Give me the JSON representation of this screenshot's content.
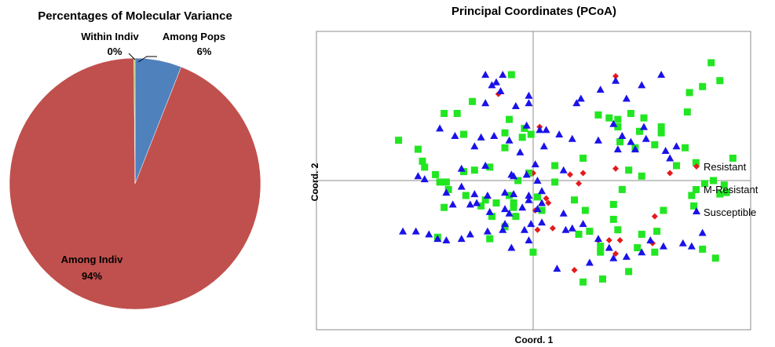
{
  "chart_data": [
    {
      "type": "pie",
      "title": "Percentages of Molecular Variance",
      "slices": [
        {
          "label": "Among Pops",
          "percent_label": "6%",
          "value": 6,
          "color": "#4F81BD"
        },
        {
          "label": "Among Indiv",
          "percent_label": "94%",
          "value": 94,
          "color": "#C0504D"
        },
        {
          "label": "Within Indiv",
          "percent_label": "0%",
          "value": 0.15,
          "color": "#9BBB59"
        }
      ]
    },
    {
      "type": "scatter",
      "title": "Principal Coordinates (PCoA)",
      "xlabel": "Coord. 1",
      "ylabel": "Coord. 2",
      "xlim": [
        -1,
        1
      ],
      "ylim": [
        -1,
        1
      ],
      "grid": false,
      "legend": "right",
      "series": [
        {
          "name": "Resistant",
          "marker": "diamond",
          "color": "#E31A1C",
          "points": [
            [
              -0.16,
              0.58
            ],
            [
              0.03,
              0.36
            ],
            [
              0.0,
              0.05
            ],
            [
              0.17,
              0.04
            ],
            [
              0.23,
              0.05
            ],
            [
              0.21,
              -0.02
            ],
            [
              0.63,
              0.05
            ],
            [
              0.38,
              0.7
            ],
            [
              0.38,
              0.08
            ],
            [
              0.01,
              -0.2
            ],
            [
              0.07,
              -0.15
            ],
            [
              0.09,
              -0.32
            ],
            [
              0.02,
              -0.33
            ],
            [
              0.56,
              -0.24
            ],
            [
              0.3,
              -0.4
            ],
            [
              0.35,
              -0.4
            ],
            [
              0.4,
              -0.4
            ],
            [
              0.38,
              -0.49
            ],
            [
              0.55,
              -0.42
            ],
            [
              0.19,
              -0.6
            ],
            [
              0.06,
              -0.12
            ]
          ]
        },
        {
          "name": "M-Resistant",
          "marker": "square",
          "color": "#22E622",
          "points": [
            [
              -0.1,
              0.71
            ],
            [
              -0.62,
              0.27
            ],
            [
              -0.53,
              0.21
            ],
            [
              -0.41,
              0.45
            ],
            [
              -0.35,
              0.45
            ],
            [
              -0.28,
              0.53
            ],
            [
              -0.11,
              0.41
            ],
            [
              -0.32,
              0.31
            ],
            [
              -0.13,
              0.32
            ],
            [
              -0.04,
              0.35
            ],
            [
              -0.05,
              0.29
            ],
            [
              -0.13,
              0.22
            ],
            [
              -0.01,
              0.31
            ],
            [
              -0.51,
              0.13
            ],
            [
              -0.5,
              0.09
            ],
            [
              -0.32,
              0.06
            ],
            [
              -0.27,
              0.07
            ],
            [
              -0.2,
              0.09
            ],
            [
              -0.45,
              0.04
            ],
            [
              -0.39,
              -0.06
            ],
            [
              -0.43,
              -0.01
            ],
            [
              -0.4,
              -0.01
            ],
            [
              -0.31,
              -0.1
            ],
            [
              -0.22,
              -0.13
            ],
            [
              -0.11,
              -0.1
            ],
            [
              -0.17,
              -0.15
            ],
            [
              -0.24,
              -0.17
            ],
            [
              -0.19,
              -0.24
            ],
            [
              -0.09,
              -0.18
            ],
            [
              -0.02,
              0.05
            ],
            [
              -0.07,
              0.0
            ],
            [
              -0.08,
              -0.24
            ],
            [
              -0.2,
              -0.39
            ],
            [
              -0.44,
              -0.38
            ],
            [
              -0.41,
              -0.18
            ],
            [
              0.0,
              -0.48
            ],
            [
              0.02,
              -0.11
            ],
            [
              -0.13,
              -0.31
            ],
            [
              0.04,
              -0.2
            ],
            [
              0.1,
              0.1
            ],
            [
              0.23,
              0.15
            ],
            [
              0.3,
              0.44
            ],
            [
              0.35,
              0.42
            ],
            [
              0.39,
              0.41
            ],
            [
              0.4,
              0.26
            ],
            [
              0.49,
              0.33
            ],
            [
              0.56,
              0.24
            ],
            [
              0.47,
              0.22
            ],
            [
              0.51,
              0.42
            ],
            [
              0.7,
              0.22
            ],
            [
              0.72,
              0.59
            ],
            [
              0.82,
              0.79
            ],
            [
              0.86,
              0.67
            ],
            [
              0.71,
              0.46
            ],
            [
              0.39,
              0.36
            ],
            [
              0.1,
              -0.01
            ],
            [
              0.19,
              -0.13
            ],
            [
              0.24,
              -0.2
            ],
            [
              0.37,
              -0.26
            ],
            [
              0.44,
              0.07
            ],
            [
              0.5,
              0.03
            ],
            [
              0.6,
              -0.2
            ],
            [
              0.26,
              -0.34
            ],
            [
              0.31,
              -0.44
            ],
            [
              0.39,
              -0.33
            ],
            [
              0.21,
              -0.36
            ],
            [
              0.48,
              -0.45
            ],
            [
              0.5,
              -0.36
            ],
            [
              0.44,
              -0.61
            ],
            [
              0.56,
              -0.48
            ],
            [
              0.59,
              0.32
            ],
            [
              0.66,
              0.1
            ],
            [
              0.75,
              0.12
            ],
            [
              0.73,
              -0.1
            ],
            [
              0.74,
              -0.17
            ],
            [
              0.79,
              -0.02
            ],
            [
              0.83,
              0.0
            ],
            [
              0.88,
              -0.03
            ],
            [
              0.86,
              -0.09
            ],
            [
              0.89,
              -0.08
            ],
            [
              0.78,
              0.63
            ],
            [
              0.92,
              0.15
            ],
            [
              0.23,
              -0.68
            ],
            [
              0.31,
              -0.48
            ],
            [
              0.32,
              -0.66
            ],
            [
              0.37,
              -0.16
            ],
            [
              0.41,
              -0.06
            ],
            [
              0.45,
              0.45
            ],
            [
              0.57,
              -0.34
            ],
            [
              -0.09,
              -0.15
            ],
            [
              0.84,
              -0.52
            ],
            [
              0.78,
              -0.46
            ],
            [
              0.59,
              0.36
            ]
          ]
        },
        {
          "name": "Susceptible",
          "marker": "triangle",
          "color": "#1A12E8",
          "points": [
            [
              -0.22,
              0.71
            ],
            [
              -0.19,
              0.64
            ],
            [
              -0.17,
              0.66
            ],
            [
              -0.14,
              0.71
            ],
            [
              -0.15,
              0.6
            ],
            [
              -0.22,
              0.52
            ],
            [
              -0.08,
              0.5
            ],
            [
              -0.02,
              0.57
            ],
            [
              -0.02,
              0.52
            ],
            [
              0.2,
              0.52
            ],
            [
              0.31,
              0.61
            ],
            [
              0.38,
              0.67
            ],
            [
              0.43,
              0.55
            ],
            [
              0.59,
              0.71
            ],
            [
              0.5,
              0.64
            ],
            [
              -0.43,
              0.35
            ],
            [
              -0.36,
              0.3
            ],
            [
              -0.24,
              0.29
            ],
            [
              -0.18,
              0.3
            ],
            [
              -0.11,
              0.27
            ],
            [
              -0.03,
              0.37
            ],
            [
              0.03,
              0.34
            ],
            [
              0.06,
              0.34
            ],
            [
              0.05,
              0.23
            ],
            [
              0.14,
              0.07
            ],
            [
              0.18,
              0.28
            ],
            [
              0.3,
              0.27
            ],
            [
              0.45,
              0.26
            ],
            [
              0.47,
              0.21
            ],
            [
              0.52,
              0.28
            ],
            [
              0.51,
              0.36
            ],
            [
              0.41,
              0.3
            ],
            [
              0.39,
              0.21
            ],
            [
              0.37,
              0.38
            ],
            [
              -0.27,
              0.23
            ],
            [
              -0.53,
              0.03
            ],
            [
              -0.5,
              0.01
            ],
            [
              -0.33,
              0.08
            ],
            [
              -0.22,
              0.1
            ],
            [
              -0.1,
              0.04
            ],
            [
              -0.09,
              0.03
            ],
            [
              -0.03,
              0.04
            ],
            [
              0.01,
              0.11
            ],
            [
              0.02,
              0.0
            ],
            [
              0.04,
              -0.07
            ],
            [
              -0.02,
              -0.1
            ],
            [
              -0.02,
              -0.13
            ],
            [
              0.04,
              -0.15
            ],
            [
              -0.09,
              -0.09
            ],
            [
              -0.13,
              -0.08
            ],
            [
              -0.21,
              -0.1
            ],
            [
              -0.27,
              -0.09
            ],
            [
              -0.33,
              -0.04
            ],
            [
              -0.4,
              -0.08
            ],
            [
              -0.37,
              -0.16
            ],
            [
              -0.29,
              -0.16
            ],
            [
              -0.26,
              -0.15
            ],
            [
              -0.2,
              -0.21
            ],
            [
              -0.13,
              -0.19
            ],
            [
              -0.05,
              -0.18
            ],
            [
              -0.11,
              -0.22
            ],
            [
              -0.01,
              -0.29
            ],
            [
              -0.14,
              -0.33
            ],
            [
              -0.21,
              -0.34
            ],
            [
              -0.29,
              -0.36
            ],
            [
              -0.33,
              -0.39
            ],
            [
              -0.4,
              -0.4
            ],
            [
              -0.44,
              -0.39
            ],
            [
              -0.48,
              -0.36
            ],
            [
              -0.54,
              -0.34
            ],
            [
              -0.6,
              -0.34
            ],
            [
              -0.1,
              -0.45
            ],
            [
              -0.04,
              -0.33
            ],
            [
              -0.02,
              -0.4
            ],
            [
              0.14,
              -0.22
            ],
            [
              0.15,
              -0.33
            ],
            [
              0.18,
              -0.32
            ],
            [
              0.23,
              -0.29
            ],
            [
              0.3,
              -0.39
            ],
            [
              0.35,
              -0.45
            ],
            [
              0.26,
              -0.55
            ],
            [
              0.37,
              -0.52
            ],
            [
              0.43,
              -0.51
            ],
            [
              0.5,
              -0.48
            ],
            [
              0.54,
              -0.4
            ],
            [
              0.6,
              -0.44
            ],
            [
              0.11,
              -0.59
            ],
            [
              -0.13,
              -0.29
            ],
            [
              0.04,
              -0.28
            ],
            [
              0.02,
              -0.19
            ],
            [
              0.69,
              -0.42
            ],
            [
              0.73,
              -0.44
            ],
            [
              0.78,
              -0.35
            ],
            [
              0.66,
              0.23
            ],
            [
              0.22,
              0.55
            ],
            [
              0.12,
              0.31
            ],
            [
              -0.06,
              0.19
            ],
            [
              0.61,
              0.2
            ],
            [
              0.63,
              0.15
            ]
          ]
        }
      ]
    }
  ]
}
